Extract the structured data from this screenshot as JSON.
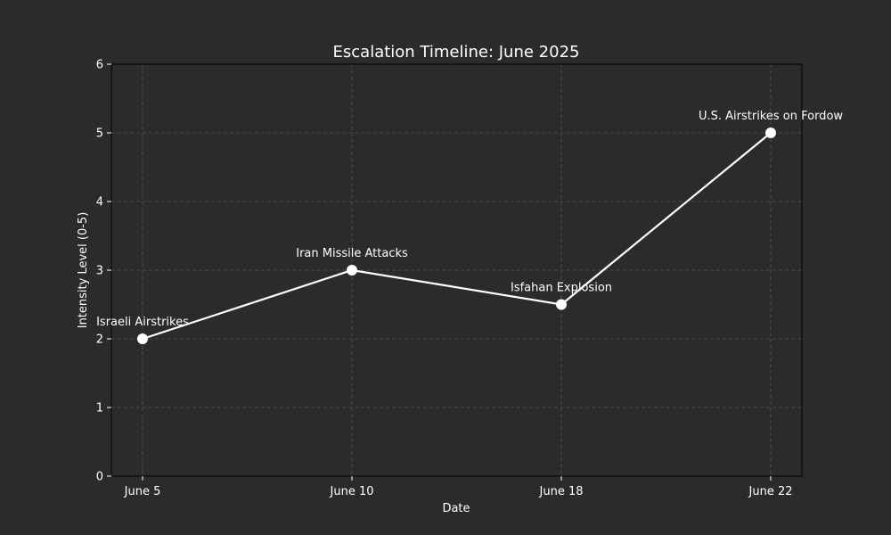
{
  "chart_data": {
    "type": "line",
    "title": "Escalation Timeline: June 2025",
    "xlabel": "Date",
    "ylabel": "Intensity Level (0-5)",
    "categories": [
      "June 5",
      "June 10",
      "June 18",
      "June 22"
    ],
    "values": [
      2,
      3,
      2.5,
      5
    ],
    "annotations": [
      "Israeli Airstrikes",
      "Iran Missile Attacks",
      "Isfahan Explosion",
      "U.S. Airstrikes on Fordow"
    ],
    "ylim": [
      0,
      6
    ],
    "yticks": [
      "0",
      "1",
      "2",
      "3",
      "4",
      "5",
      "6"
    ],
    "grid": true,
    "colors": {
      "background": "#2b2b2b",
      "line": "#ffffff",
      "grid": "#555555",
      "text": "#ffffff"
    }
  }
}
